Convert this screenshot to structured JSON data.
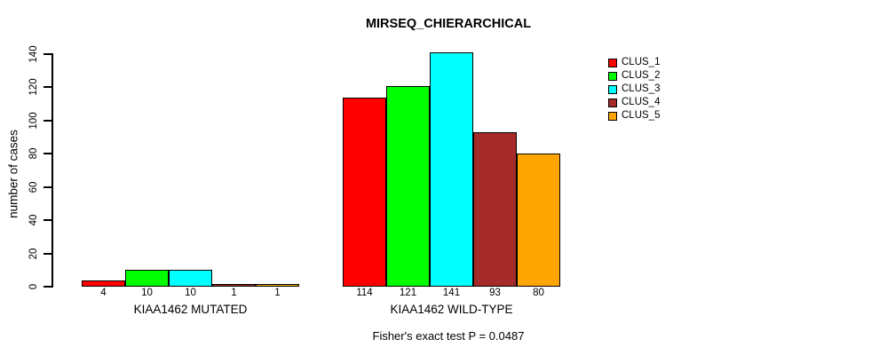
{
  "title": "MIRSEQ_CHIERARCHICAL",
  "y_axis": {
    "label": "number of cases"
  },
  "footer": "Fisher's exact test P = 0.0487",
  "legend": {
    "items": [
      {
        "label": "CLUS_1",
        "color": "#FF0000"
      },
      {
        "label": "CLUS_2",
        "color": "#00FF00"
      },
      {
        "label": "CLUS_3",
        "color": "#00FFFF"
      },
      {
        "label": "CLUS_4",
        "color": "#A52A2A"
      },
      {
        "label": "CLUS_5",
        "color": "#FFA500"
      }
    ]
  },
  "chart_data": {
    "type": "bar",
    "title": "MIRSEQ_CHIERARCHICAL",
    "ylabel": "number of cases",
    "ylim": [
      0,
      140
    ],
    "yticks": [
      0,
      20,
      40,
      60,
      80,
      100,
      120,
      140
    ],
    "grid": false,
    "legend_position": "top-right",
    "categories": [
      "KIAA1462 MUTATED",
      "KIAA1462 WILD-TYPE"
    ],
    "series": [
      {
        "name": "CLUS_1",
        "color": "#FF0000",
        "values": [
          4,
          114
        ]
      },
      {
        "name": "CLUS_2",
        "color": "#00FF00",
        "values": [
          10,
          121
        ]
      },
      {
        "name": "CLUS_3",
        "color": "#00FFFF",
        "values": [
          10,
          141
        ]
      },
      {
        "name": "CLUS_4",
        "color": "#A52A2A",
        "values": [
          1,
          93
        ]
      },
      {
        "name": "CLUS_5",
        "color": "#FFA500",
        "values": [
          1,
          80
        ]
      }
    ],
    "bar_value_labels": true,
    "annotation": "Fisher's exact test P = 0.0487"
  }
}
